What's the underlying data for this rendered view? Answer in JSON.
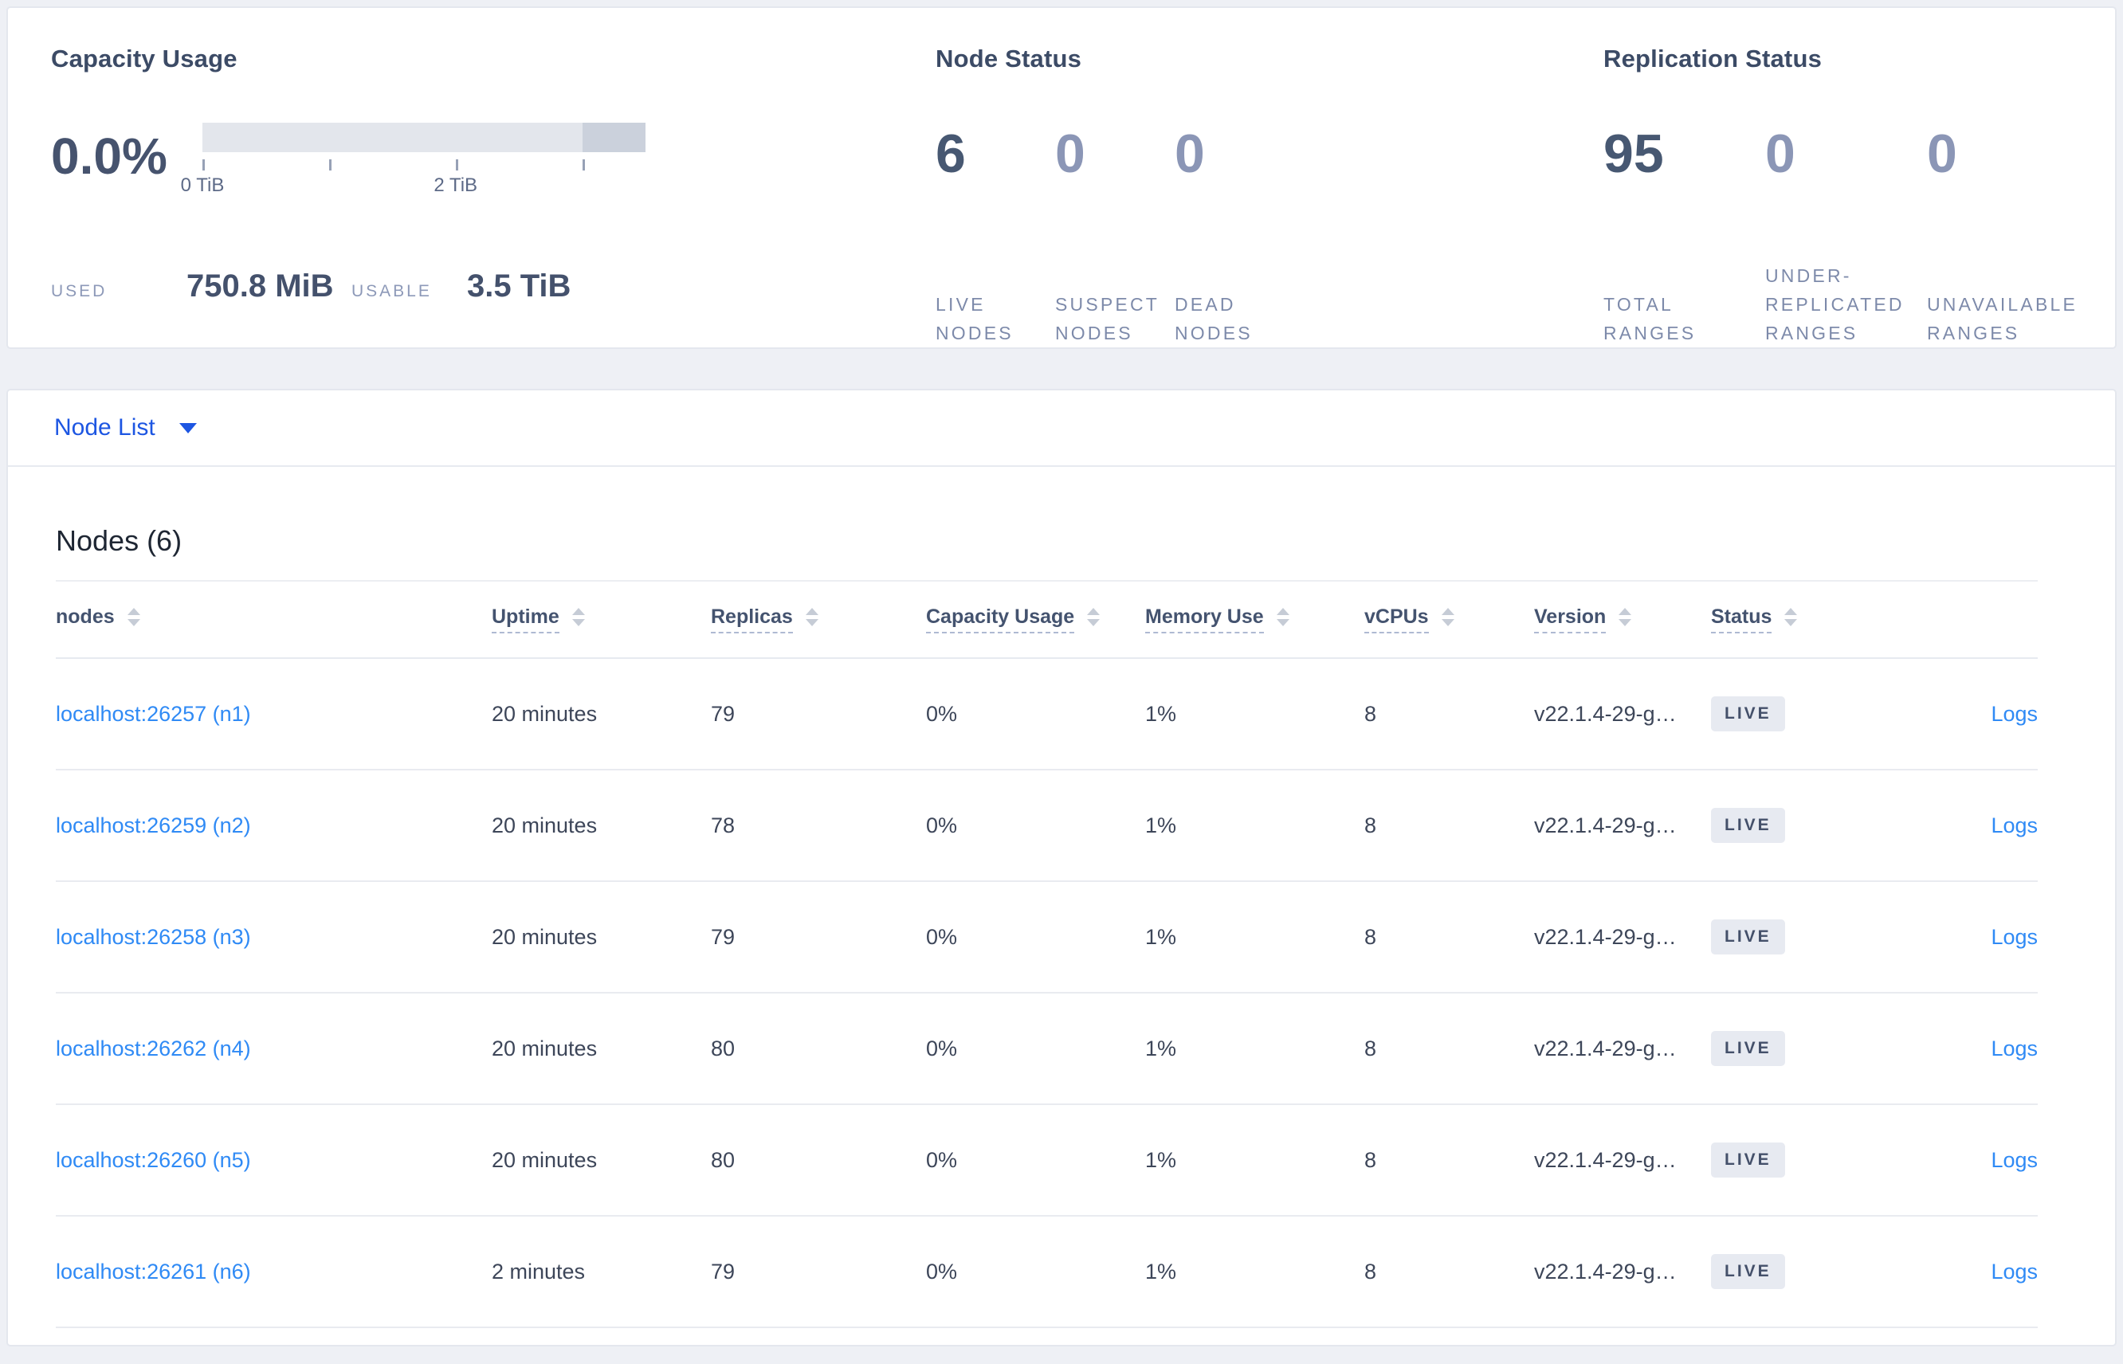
{
  "colors": {
    "page_background": "#eef0f5",
    "card_border": "#e4e7ee",
    "heading": "#3c4b66",
    "stat_emphasis": "#475872",
    "stat_muted": "#8b96b6",
    "dropdown_blue": "#1d56e2",
    "link_blue": "#2f8af5",
    "bar_track": "#e3e6ec",
    "bar_tail": "#cbd1dc",
    "badge_background": "#e7eaf1",
    "badge_text": "#44506a"
  },
  "capacity": {
    "title": "Capacity Usage",
    "percent": "0.0%",
    "bar": {
      "tick_positions_pct": [
        0,
        28.57,
        57.14,
        85.71
      ],
      "axis_labels": [
        {
          "text": "0 TiB",
          "pos_pct": 0
        },
        {
          "text": "2 TiB",
          "pos_pct": 57.14
        }
      ],
      "tail_start_pct": 85.7
    },
    "used_label": "USED",
    "used_value": "750.8 MiB",
    "usable_label": "USABLE",
    "usable_value": "3.5 TiB"
  },
  "node_status": {
    "title": "Node Status",
    "stats": [
      {
        "value": "6",
        "label": "LIVE\nNODES",
        "emphasis": true
      },
      {
        "value": "0",
        "label": "SUSPECT\nNODES",
        "emphasis": false
      },
      {
        "value": "0",
        "label": "DEAD\nNODES",
        "emphasis": false
      }
    ]
  },
  "replication_status": {
    "title": "Replication Status",
    "stats": [
      {
        "value": "95",
        "label": "TOTAL\nRANGES",
        "emphasis": true
      },
      {
        "value": "0",
        "label": "UNDER-\nREPLICATED\nRANGES",
        "emphasis": false
      },
      {
        "value": "0",
        "label": "UNAVAILABLE\nRANGES",
        "emphasis": false
      }
    ]
  },
  "node_list_dropdown": {
    "label": "Node List"
  },
  "nodes_section": {
    "title": "Nodes (6)",
    "columns": [
      {
        "key": "node",
        "label": "nodes",
        "dashed": false
      },
      {
        "key": "uptime",
        "label": "Uptime",
        "dashed": true
      },
      {
        "key": "replicas",
        "label": "Replicas",
        "dashed": true
      },
      {
        "key": "capacity_usage",
        "label": "Capacity Usage",
        "dashed": true
      },
      {
        "key": "memory_use",
        "label": "Memory Use",
        "dashed": true
      },
      {
        "key": "vcpus",
        "label": "vCPUs",
        "dashed": true
      },
      {
        "key": "version",
        "label": "Version",
        "dashed": true
      },
      {
        "key": "status",
        "label": "Status",
        "dashed": true
      }
    ],
    "rows": [
      {
        "node": "localhost:26257 (n1)",
        "uptime": "20 minutes",
        "replicas": "79",
        "capacity_usage": "0%",
        "memory_use": "1%",
        "vcpus": "8",
        "version": "v22.1.4-29-g…",
        "status": "LIVE",
        "logs": "Logs"
      },
      {
        "node": "localhost:26259 (n2)",
        "uptime": "20 minutes",
        "replicas": "78",
        "capacity_usage": "0%",
        "memory_use": "1%",
        "vcpus": "8",
        "version": "v22.1.4-29-g…",
        "status": "LIVE",
        "logs": "Logs"
      },
      {
        "node": "localhost:26258 (n3)",
        "uptime": "20 minutes",
        "replicas": "79",
        "capacity_usage": "0%",
        "memory_use": "1%",
        "vcpus": "8",
        "version": "v22.1.4-29-g…",
        "status": "LIVE",
        "logs": "Logs"
      },
      {
        "node": "localhost:26262 (n4)",
        "uptime": "20 minutes",
        "replicas": "80",
        "capacity_usage": "0%",
        "memory_use": "1%",
        "vcpus": "8",
        "version": "v22.1.4-29-g…",
        "status": "LIVE",
        "logs": "Logs"
      },
      {
        "node": "localhost:26260 (n5)",
        "uptime": "20 minutes",
        "replicas": "80",
        "capacity_usage": "0%",
        "memory_use": "1%",
        "vcpus": "8",
        "version": "v22.1.4-29-g…",
        "status": "LIVE",
        "logs": "Logs"
      },
      {
        "node": "localhost:26261 (n6)",
        "uptime": "2 minutes",
        "replicas": "79",
        "capacity_usage": "0%",
        "memory_use": "1%",
        "vcpus": "8",
        "version": "v22.1.4-29-g…",
        "status": "LIVE",
        "logs": "Logs"
      }
    ]
  }
}
